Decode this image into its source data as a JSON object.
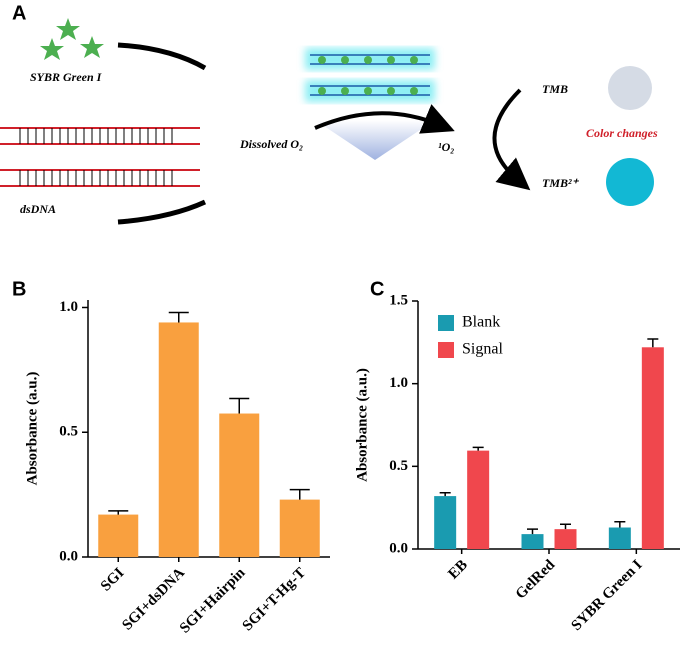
{
  "panel_a": {
    "label": "A",
    "sybr": "SYBR Green I",
    "dsdna": "dsDNA",
    "dissolved": "Dissolved O₂",
    "singlet": "¹O₂",
    "tmb": "TMB",
    "tmb_ox": "TMB²⁺",
    "color_changes": "Color changes"
  },
  "chart_data": [
    {
      "type": "bar",
      "panel_label": "B",
      "ylabel": "Absorbance (a.u.)",
      "categories": [
        "SGI",
        "SGI+dsDNA",
        "SGI+Hairpin",
        "SGI+T-Hg-T"
      ],
      "series": [
        {
          "color": "#f9a03f",
          "values": [
            0.17,
            0.94,
            0.575,
            0.23
          ],
          "errors": [
            0.015,
            0.04,
            0.06,
            0.04
          ]
        }
      ],
      "ylim": [
        0,
        1.03
      ],
      "yticks": [
        {
          "value": 0,
          "label": "0.0"
        },
        {
          "value": 0.5,
          "label": "0.5"
        },
        {
          "value": 1,
          "label": "1.0"
        }
      ]
    },
    {
      "type": "bar",
      "panel_label": "C",
      "ylabel": "Absorbance (a.u.)",
      "categories": [
        "EB",
        "GelRed",
        "SYBR Green I"
      ],
      "series": [
        {
          "name": "Blank",
          "color": "#1a9bb0",
          "values": [
            0.32,
            0.09,
            0.13
          ],
          "errors": [
            0.02,
            0.03,
            0.035
          ]
        },
        {
          "name": "Signal",
          "color": "#f0474d",
          "values": [
            0.595,
            0.12,
            1.22
          ],
          "errors": [
            0.02,
            0.03,
            0.05
          ]
        }
      ],
      "ylim": [
        0,
        1.5
      ],
      "yticks": [
        {
          "value": 0,
          "label": "0.0"
        },
        {
          "value": 0.5,
          "label": "0.5"
        },
        {
          "value": 1,
          "label": "1.0"
        },
        {
          "value": 1.5,
          "label": "1.5"
        }
      ],
      "legend": "upper left"
    }
  ]
}
